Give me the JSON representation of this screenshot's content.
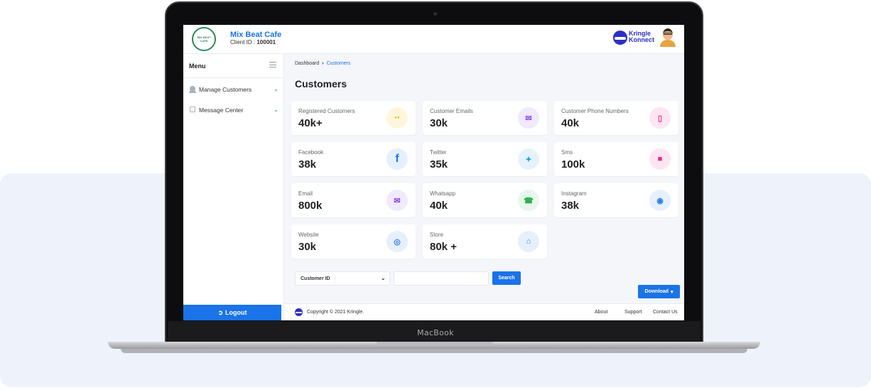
{
  "device": {
    "brand_label": "MacBook"
  },
  "header": {
    "logo_text": [
      "MIX BEAT",
      "CAFE"
    ],
    "cafe_name": "Mix Beat Cafe",
    "client_id_label": "Client ID :",
    "client_id_value": "100001",
    "partner_logo_line1": "Kringle",
    "partner_logo_line2": "Konnect"
  },
  "sidebar": {
    "menu_title": "Menu",
    "items": [
      {
        "label": "Manage Customers",
        "icon": "user-icon"
      },
      {
        "label": "Message Center",
        "icon": "message-icon"
      }
    ],
    "logout_label": "Logout"
  },
  "breadcrumb": {
    "root": "Dashboard",
    "current": "Customers"
  },
  "page_title": "Customers",
  "cards": [
    {
      "label": "Registered Customers",
      "value": "40k+",
      "icon": "users-icon",
      "icon_bg": "#fdf6dd",
      "icon_color": "#f3b400"
    },
    {
      "label": "Customer Emails",
      "value": "30k",
      "icon": "mail-icon",
      "icon_bg": "#f1e9fc",
      "icon_color": "#8e44ef"
    },
    {
      "label": "Customer Phone Numbers",
      "value": "40k",
      "icon": "phone-icon",
      "icon_bg": "#fde6f1",
      "icon_color": "#ee2a8a"
    },
    {
      "label": "Facebook",
      "value": "38k",
      "icon": "facebook-icon",
      "icon_bg": "#e6f0fc",
      "icon_color": "#1877f2"
    },
    {
      "label": "Twitter",
      "value": "35k",
      "icon": "twitter-icon",
      "icon_bg": "#e6f3fc",
      "icon_color": "#1da1f2"
    },
    {
      "label": "Sms",
      "value": "100k",
      "icon": "sms-icon",
      "icon_bg": "#fde6f1",
      "icon_color": "#ee2a8a"
    },
    {
      "label": "Email",
      "value": "800k",
      "icon": "mail-icon",
      "icon_bg": "#f1e9fc",
      "icon_color": "#8e44ef"
    },
    {
      "label": "Whatsapp",
      "value": "40k",
      "icon": "whatsapp-icon",
      "icon_bg": "#e7f7ec",
      "icon_color": "#25b04a"
    },
    {
      "label": "Instagram",
      "value": "38k",
      "icon": "instagram-icon",
      "icon_bg": "#e6f0fc",
      "icon_color": "#2d7fe0"
    },
    {
      "label": "Website",
      "value": "30k",
      "icon": "globe-icon",
      "icon_bg": "#e6f0fc",
      "icon_color": "#2d7fe0"
    },
    {
      "label": "Store",
      "value": "80k +",
      "icon": "store-icon",
      "icon_bg": "#e6f0fc",
      "icon_color": "#2d7fe0"
    }
  ],
  "filter": {
    "select_value": "Customer ID",
    "search_placeholder": "",
    "search_label": "Search"
  },
  "download_label": "Download",
  "footer": {
    "copyright": "Copyright © 2021 Kringle.",
    "links": [
      "About",
      "Support",
      "Contact Us"
    ]
  }
}
